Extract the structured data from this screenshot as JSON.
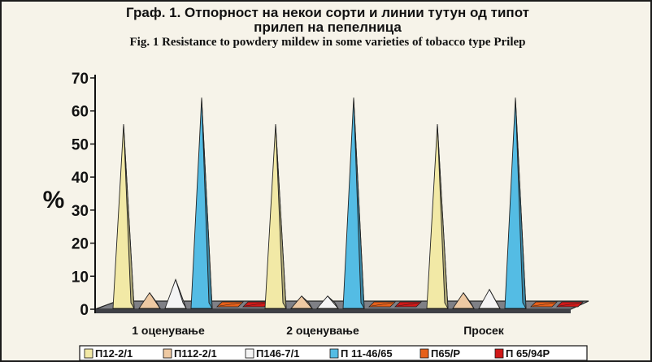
{
  "chart_data": {
    "type": "bar",
    "subtype": "3d-pyramid",
    "title_mk_line1": "Граф. 1. Отпорност на некои сорти и линии тутун од типот",
    "title_mk_line2": "прилеп на пепелница",
    "title_en": "Fig. 1 Resistance to powdery mildew in some varieties of tobacco type Prilep",
    "ylabel": "%",
    "ylim": [
      0,
      70
    ],
    "yticks": [
      0,
      10,
      20,
      30,
      40,
      50,
      60,
      70
    ],
    "categories": [
      "1 оценување",
      "2 оценување",
      "Просек"
    ],
    "series": [
      {
        "name": "П12-2/1",
        "values": [
          56,
          56,
          56
        ],
        "color": "#f2e9a6"
      },
      {
        "name": "П112-2/1",
        "values": [
          5,
          4,
          5
        ],
        "color": "#eec9a2"
      },
      {
        "name": "П146-7/1",
        "values": [
          9,
          4,
          6
        ],
        "color": "#f4f4f4"
      },
      {
        "name": "П 11-46/65",
        "values": [
          64,
          64,
          64
        ],
        "color": "#54bce4"
      },
      {
        "name": "П65/Р",
        "values": [
          0,
          0,
          0
        ],
        "color": "#e6601a"
      },
      {
        "name": "П 65/94Р",
        "values": [
          0,
          0,
          0
        ],
        "color": "#d01818"
      }
    ],
    "legend_position": "bottom",
    "grid": false
  }
}
